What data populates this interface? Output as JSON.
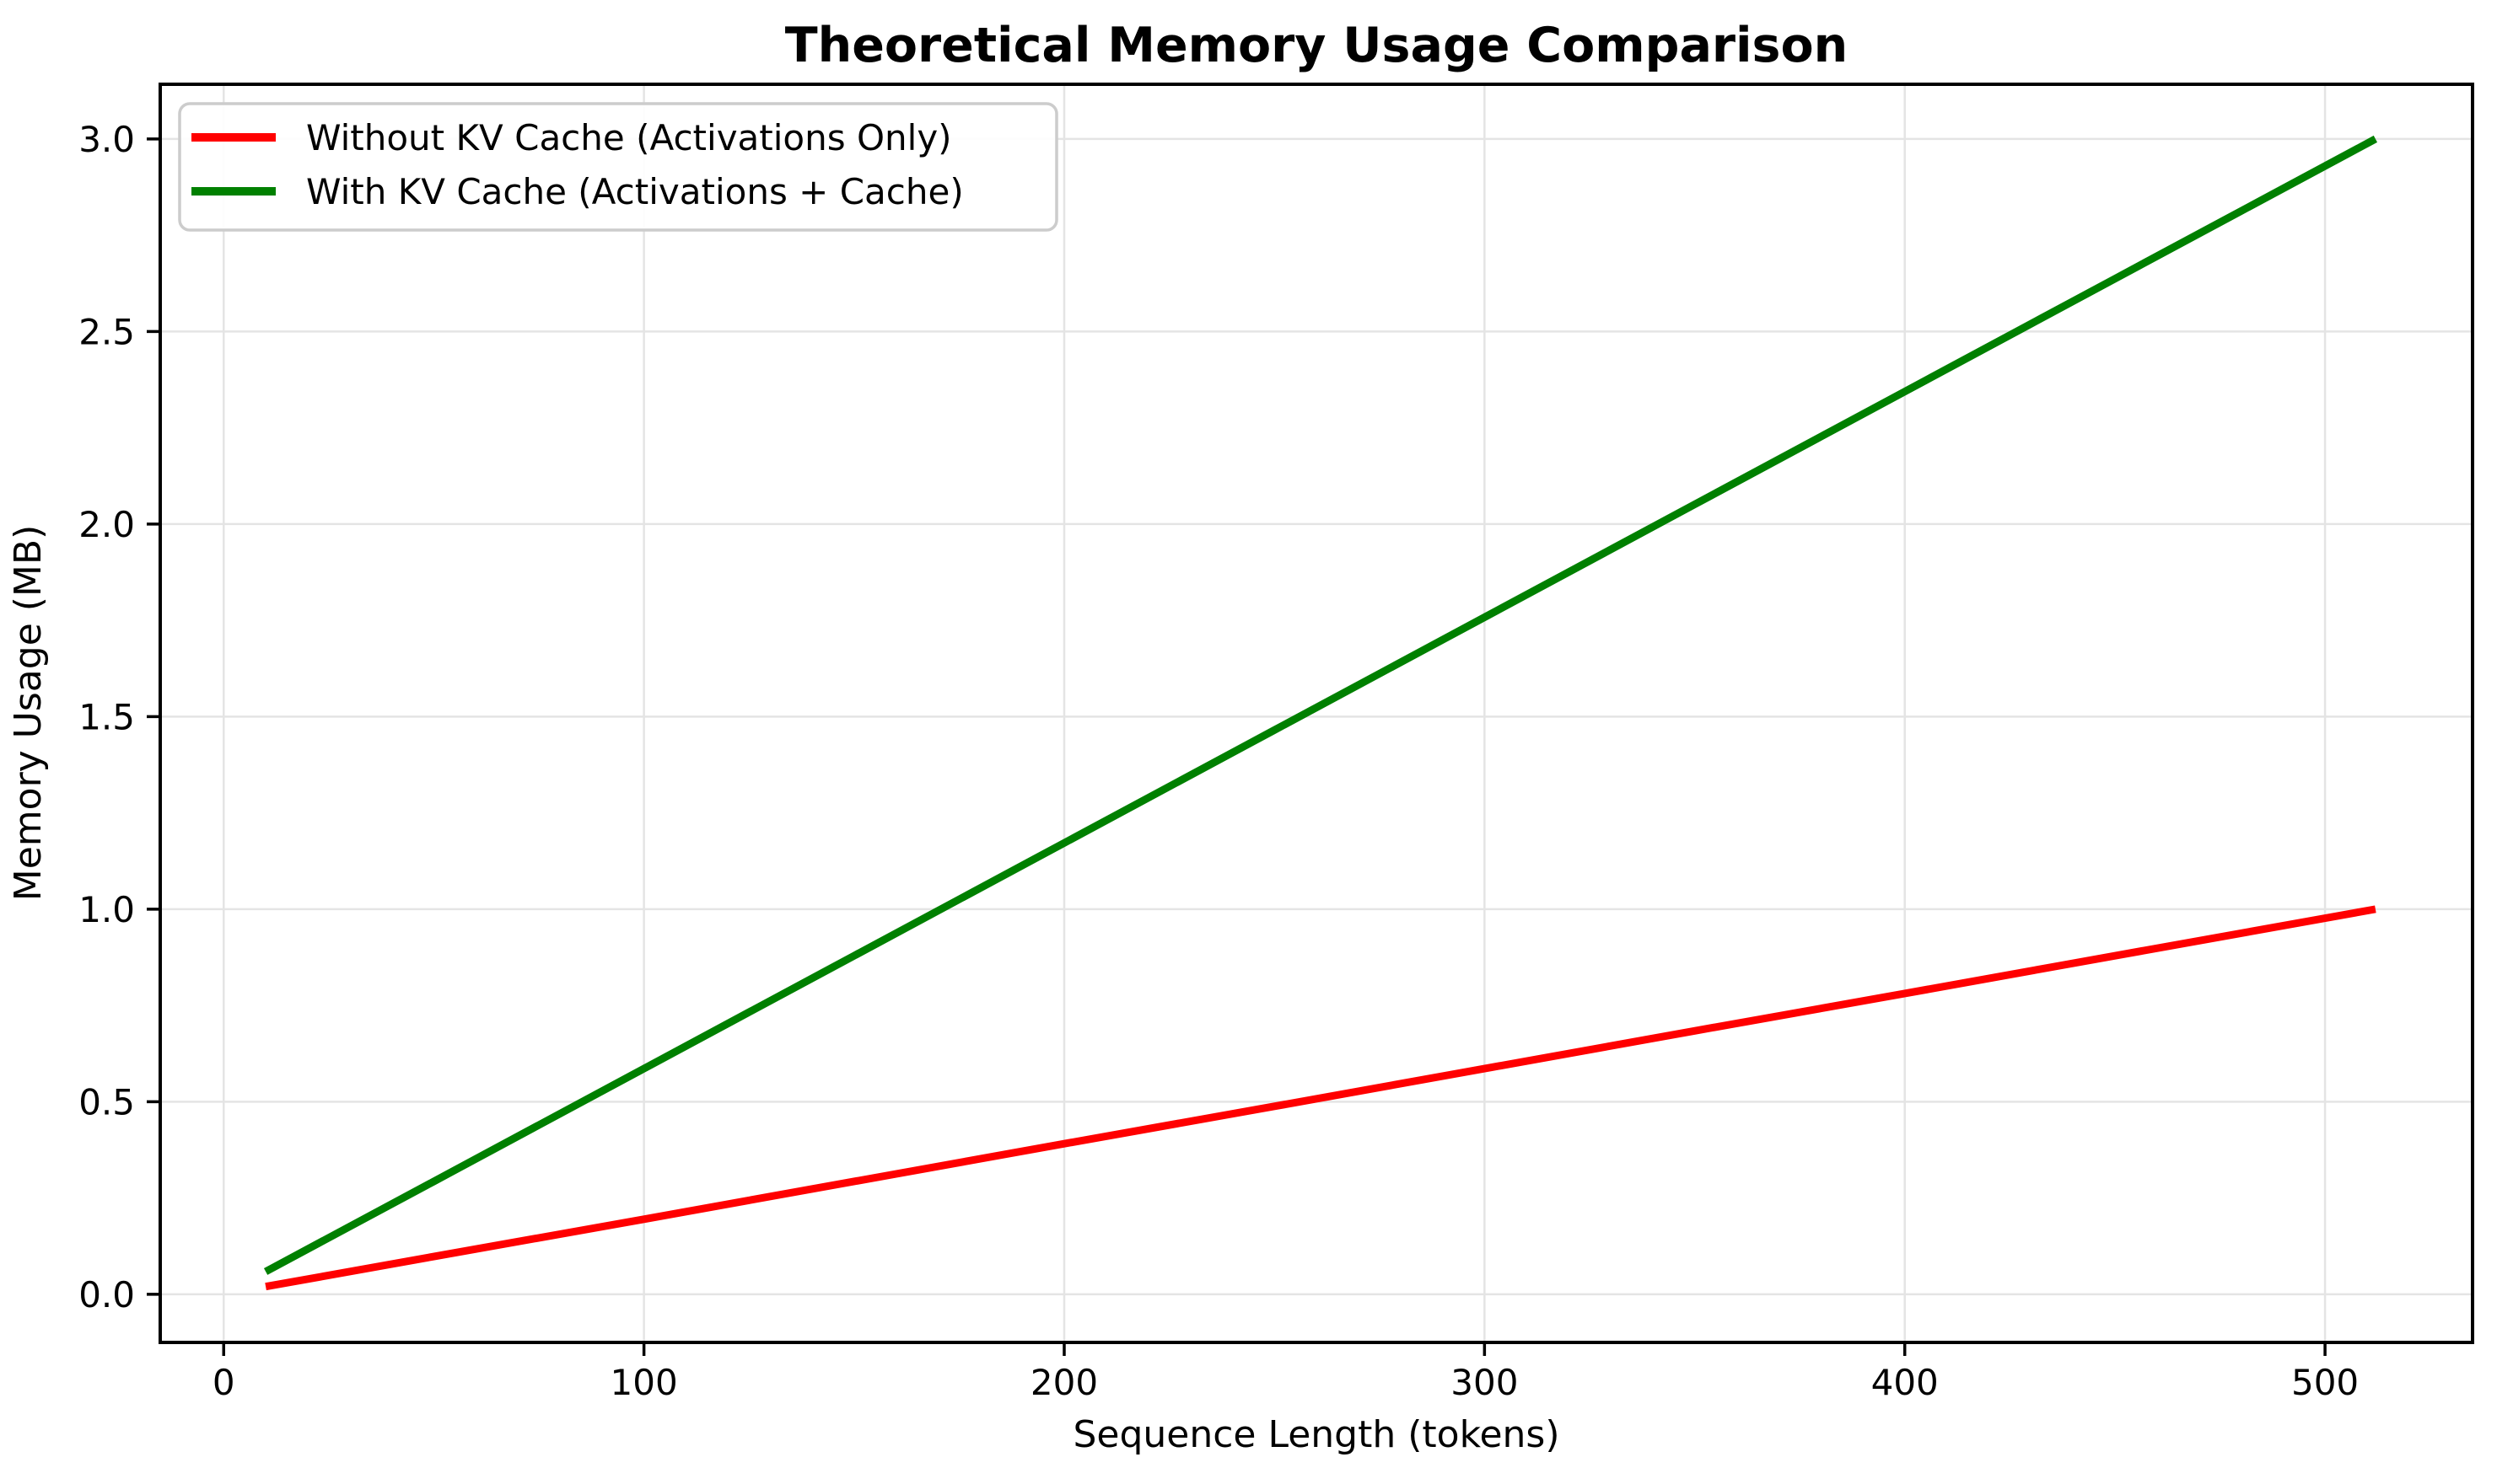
{
  "chart_data": {
    "type": "line",
    "title": "Theoretical Memory Usage Comparison",
    "xlabel": "Sequence Length (tokens)",
    "ylabel": "Memory Usage (MB)",
    "xlim": [
      -15.1,
      535.1
    ],
    "ylim": [
      -0.125,
      3.142
    ],
    "grid": true,
    "grid_color": "#e4e4e4",
    "background_color": "#ffffff",
    "spine_color": "#000000",
    "legend_position": "upper-left",
    "xticks": [
      0,
      100,
      200,
      300,
      400,
      500
    ],
    "xtick_labels": [
      "0",
      "100",
      "200",
      "300",
      "400",
      "500"
    ],
    "yticks": [
      0.0,
      0.5,
      1.0,
      1.5,
      2.0,
      2.5,
      3.0
    ],
    "ytick_labels": [
      "0.0",
      "0.5",
      "1.0",
      "1.5",
      "2.0",
      "2.5",
      "3.0"
    ],
    "x": [
      10,
      50,
      100,
      150,
      200,
      250,
      300,
      350,
      400,
      450,
      512
    ],
    "series": [
      {
        "name": "Without KV Cache (Activations Only)",
        "color": "#ff0000",
        "values": [
          0.02,
          0.098,
          0.195,
          0.293,
          0.391,
          0.488,
          0.586,
          0.684,
          0.781,
          0.879,
          1.0
        ]
      },
      {
        "name": "With KV Cache (Activations + Cache)",
        "color": "#008000",
        "values": [
          0.059,
          0.293,
          0.586,
          0.879,
          1.172,
          1.465,
          1.758,
          2.051,
          2.344,
          2.637,
          3.0
        ]
      }
    ]
  }
}
